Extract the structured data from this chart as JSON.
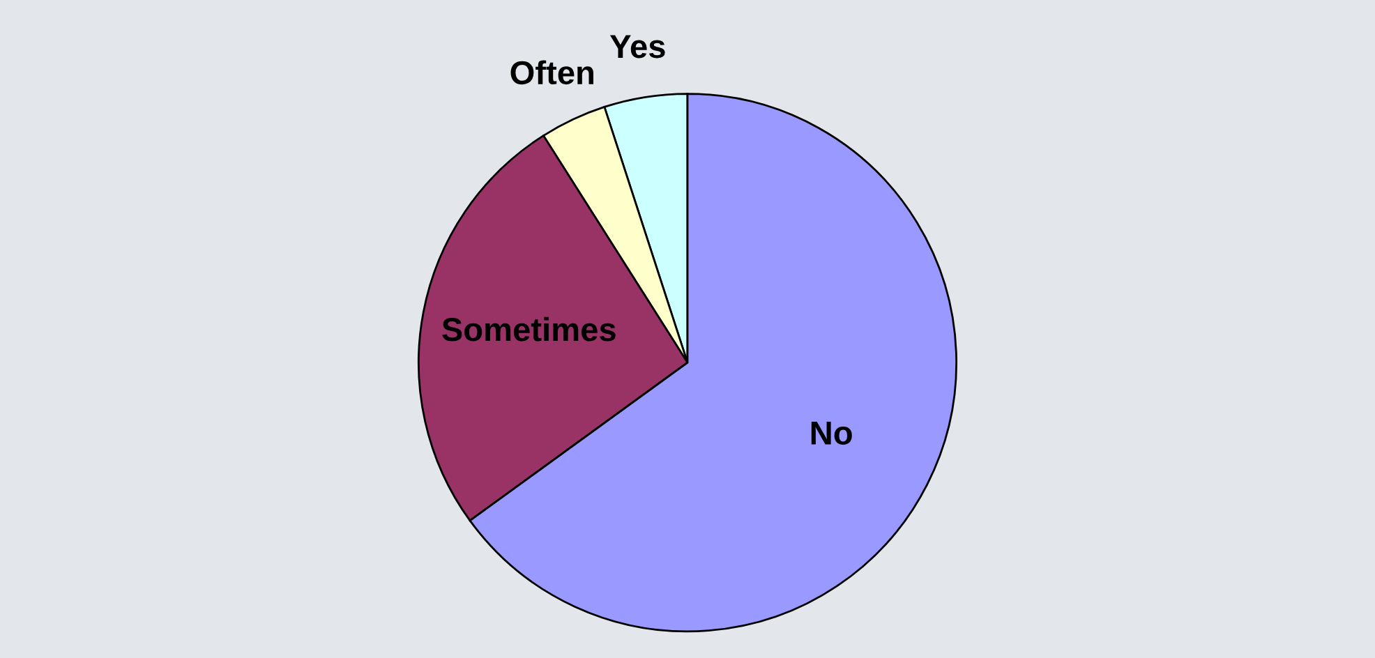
{
  "chart_data": {
    "type": "pie",
    "categories": [
      "Yes",
      "Often",
      "Sometimes",
      "No"
    ],
    "values": [
      5,
      4,
      26,
      65
    ],
    "colors": [
      "#ccffff",
      "#ffffcc",
      "#993366",
      "#9999ff"
    ]
  }
}
